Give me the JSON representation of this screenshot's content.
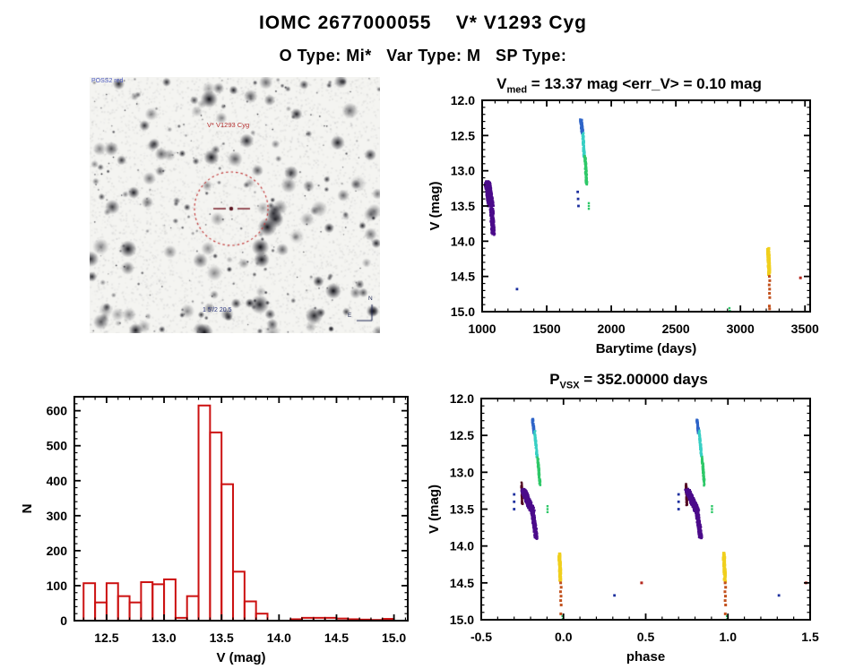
{
  "header": {
    "title": "IOMC 2677000055    V* V1293 Cyg",
    "subtitle": "O Type: Mi*   Var Type: M   SP Type:"
  },
  "finder": {
    "survey_label": "POSS2 red",
    "target_label": "V* V1293 Cyg",
    "caption": "1 5'/2 20.5",
    "compass": {
      "north": "N",
      "east": "E"
    }
  },
  "chart_data": [
    {
      "id": "lightcurve",
      "type": "scatter",
      "title_parts": {
        "main": "V",
        "sub": "med",
        "rest": " = 13.37 mag <err_V> = 0.10 mag"
      },
      "xlabel": "Barytime (days)",
      "ylabel": "V (mag)",
      "xlim": [
        1000,
        3540
      ],
      "ylim": [
        12.0,
        15.0
      ],
      "invert_y": true,
      "grid": false,
      "legend": "none",
      "xticks": {
        "major": [
          1000,
          1500,
          2000,
          2500,
          3000,
          3500
        ],
        "labels": [
          "1000",
          "1500",
          "2000",
          "2500",
          "3000",
          "3500"
        ],
        "minor_step": 100
      },
      "yticks": {
        "major": [
          12.0,
          12.5,
          13.0,
          13.5,
          14.0,
          14.5,
          15.0
        ],
        "labels": [
          "12.0",
          "12.5",
          "13.0",
          "13.5",
          "14.0",
          "14.5",
          "15.0"
        ],
        "minor_step": 0.1
      },
      "series": [
        {
          "name": "epoch1-purple",
          "color": "#4b0b8a",
          "size": 2.2,
          "streaks": [
            [
              1040,
              13.16,
              1068,
              13.5,
              45,
              360
            ],
            [
              1072,
              13.5,
              1085,
              13.9,
              28,
              160
            ]
          ],
          "points": []
        },
        {
          "name": "navy-outliers",
          "color": "#1c2f9e",
          "size": 2.8,
          "streaks": [],
          "points": [
            [
              1270,
              14.68
            ],
            [
              1740,
              13.3
            ],
            [
              1743,
              13.4
            ],
            [
              1746,
              13.5
            ]
          ]
        },
        {
          "name": "epoch2-blue",
          "color": "#2e64c8",
          "size": 2.4,
          "streaks": [
            [
              1765,
              12.27,
              1776,
              12.47,
              15,
              70
            ]
          ],
          "points": []
        },
        {
          "name": "epoch2-cyan",
          "color": "#38cfc4",
          "size": 2.4,
          "streaks": [
            [
              1779,
              12.45,
              1791,
              12.8,
              12,
              80
            ]
          ],
          "points": []
        },
        {
          "name": "epoch2-green",
          "color": "#2ec868",
          "size": 2.4,
          "streaks": [
            [
              1796,
              12.8,
              1809,
              13.18,
              12,
              90
            ]
          ],
          "points": [
            [
              1826,
              13.46
            ],
            [
              1826,
              13.5
            ],
            [
              1826,
              13.54
            ],
            [
              2915,
              14.95
            ],
            [
              2918,
              14.99
            ]
          ]
        },
        {
          "name": "epoch3-yellow",
          "color": "#f0cf1c",
          "size": 3.2,
          "streaks": [
            [
              3215,
              14.1,
              3223,
              14.47,
              12,
              70
            ]
          ],
          "points": []
        },
        {
          "name": "epoch3-orange",
          "color": "#c2511d",
          "size": 3.0,
          "streaks": [],
          "points": [
            [
              3224,
              14.5
            ],
            [
              3227,
              14.56
            ],
            [
              3223,
              14.62
            ],
            [
              3226,
              14.68
            ],
            [
              3225,
              14.74
            ],
            [
              3227,
              14.8
            ],
            [
              3224,
              14.92
            ],
            [
              3226,
              14.96
            ]
          ]
        },
        {
          "name": "red-outlier",
          "color": "#b5281e",
          "size": 3.0,
          "streaks": [],
          "points": [
            [
              3465,
              14.52
            ]
          ]
        }
      ]
    },
    {
      "id": "histogram",
      "type": "histogram",
      "xlabel": "V (mag)",
      "ylabel": "N",
      "xlim": [
        12.22,
        15.12
      ],
      "ylim": [
        0,
        640
      ],
      "invert_y": false,
      "grid": false,
      "legend": "none",
      "bar_color": "#cc1111",
      "bin_start": 12.3,
      "bin_width": 0.1,
      "values": [
        107,
        52,
        107,
        70,
        52,
        110,
        104,
        118,
        8,
        70,
        615,
        538,
        390,
        140,
        55,
        20,
        0,
        0,
        4,
        8,
        8,
        8,
        6,
        4,
        3,
        2,
        5
      ],
      "xticks": {
        "major": [
          12.5,
          13.0,
          13.5,
          14.0,
          14.5,
          15.0
        ],
        "labels": [
          "12.5",
          "13.0",
          "13.5",
          "14.0",
          "14.5",
          "15.0"
        ],
        "minor_step": 0.1
      },
      "yticks": {
        "major": [
          0,
          100,
          200,
          300,
          400,
          500,
          600
        ],
        "labels": [
          "0",
          "100",
          "200",
          "300",
          "400",
          "500",
          "600"
        ],
        "minor_step": 20
      }
    },
    {
      "id": "phase",
      "type": "scatter",
      "title_parts": {
        "main": "P",
        "sub": "VSX",
        "rest": " = 352.00000 days"
      },
      "xlabel": "phase",
      "ylabel": "V (mag)",
      "xlim": [
        -0.5,
        1.5
      ],
      "ylim": [
        12.0,
        15.0
      ],
      "invert_y": true,
      "grid": false,
      "legend": "none",
      "repeat_offset": 1.0,
      "xticks": {
        "major": [
          -0.5,
          0.0,
          0.5,
          1.0,
          1.5
        ],
        "labels": [
          "-0.5",
          "0.0",
          "0.5",
          "1.0",
          "1.5"
        ],
        "minor_step": 0.1
      },
      "yticks": {
        "major": [
          12.0,
          12.5,
          13.0,
          13.5,
          14.0,
          14.5,
          15.0
        ],
        "labels": [
          "12.0",
          "12.5",
          "13.0",
          "13.5",
          "14.0",
          "14.5",
          "15.0"
        ],
        "minor_step": 0.1
      },
      "series": [
        {
          "name": "maroon-edge",
          "color": "#530a22",
          "size": 2.2,
          "streaks": [
            [
              -0.255,
              13.15,
              -0.25,
              13.44,
              0.006,
              70
            ]
          ],
          "points": []
        },
        {
          "name": "purple-blob",
          "color": "#4b0b8a",
          "size": 2.2,
          "streaks": [
            [
              -0.245,
              13.24,
              -0.19,
              13.52,
              0.032,
              420
            ],
            [
              -0.19,
              13.52,
              -0.165,
              13.89,
              0.02,
              220
            ]
          ],
          "points": []
        },
        {
          "name": "navy-outliers",
          "color": "#1c2f9e",
          "size": 2.8,
          "streaks": [],
          "points": [
            [
              -0.3,
              13.3
            ],
            [
              -0.3,
              13.4
            ],
            [
              -0.3,
              13.5
            ],
            [
              0.31,
              14.67
            ]
          ]
        },
        {
          "name": "blue-streak",
          "color": "#2e64c8",
          "size": 2.4,
          "streaks": [
            [
              -0.188,
              12.28,
              -0.178,
              12.47,
              0.008,
              60
            ]
          ],
          "points": []
        },
        {
          "name": "cyan-streak",
          "color": "#38cfc4",
          "size": 2.4,
          "streaks": [
            [
              -0.175,
              12.45,
              -0.16,
              12.8,
              0.007,
              70
            ]
          ],
          "points": []
        },
        {
          "name": "green-streak",
          "color": "#2ec868",
          "size": 2.4,
          "streaks": [
            [
              -0.157,
              12.8,
              -0.143,
              13.17,
              0.007,
              80
            ]
          ],
          "points": [
            [
              -0.097,
              13.46
            ],
            [
              -0.097,
              13.5
            ],
            [
              -0.097,
              13.54
            ],
            [
              -0.006,
              14.95
            ],
            [
              -0.004,
              14.99
            ]
          ]
        },
        {
          "name": "yellow-column",
          "color": "#f0cf1c",
          "size": 3.2,
          "streaks": [
            [
              -0.025,
              14.1,
              -0.018,
              14.47,
              0.008,
              60
            ]
          ],
          "points": []
        },
        {
          "name": "orange-dots",
          "color": "#c2511d",
          "size": 3.0,
          "streaks": [],
          "points": [
            [
              -0.017,
              14.5
            ],
            [
              -0.014,
              14.56
            ],
            [
              -0.018,
              14.62
            ],
            [
              -0.015,
              14.68
            ],
            [
              -0.017,
              14.74
            ],
            [
              -0.014,
              14.8
            ],
            [
              -0.016,
              14.92
            ]
          ]
        },
        {
          "name": "red-dot",
          "color": "#b5281e",
          "size": 3.0,
          "streaks": [],
          "points": [
            [
              0.475,
              14.5
            ]
          ]
        }
      ]
    }
  ]
}
